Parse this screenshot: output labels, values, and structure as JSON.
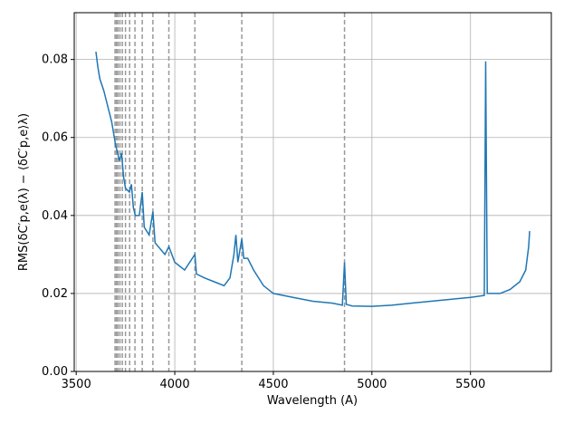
{
  "chart_data": {
    "type": "line",
    "xlabel": "Wavelength (A)",
    "ylabel": "RMS(δC′p,e(λ) − ⟨δC′p,e⟩λ)",
    "xlim": [
      3490,
      5910
    ],
    "ylim": [
      0,
      0.092
    ],
    "xticks": [
      3500,
      4000,
      4500,
      5000,
      5500
    ],
    "yticks": [
      {
        "value": 0,
        "label": "0.00"
      },
      {
        "value": 0.02,
        "label": "0.02"
      },
      {
        "value": 0.04,
        "label": "0.04"
      },
      {
        "value": 0.06,
        "label": "0.06"
      },
      {
        "value": 0.08,
        "label": "0.08"
      }
    ],
    "grid": true,
    "vlines": [
      3697,
      3704,
      3712,
      3722,
      3734,
      3750,
      3771,
      3798,
      3835,
      3889,
      3970,
      4102,
      4340,
      4861
    ],
    "vline_color": "#999999",
    "series": [
      {
        "color": "#1f77b4",
        "x": [
          3600,
          3610,
          3620,
          3640,
          3660,
          3680,
          3700,
          3720,
          3730,
          3740,
          3750,
          3770,
          3780,
          3790,
          3800,
          3820,
          3835,
          3845,
          3870,
          3889,
          3900,
          3950,
          3970,
          4000,
          4050,
          4102,
          4110,
          4150,
          4200,
          4250,
          4280,
          4300,
          4310,
          4320,
          4340,
          4350,
          4370,
          4400,
          4450,
          4500,
          4600,
          4700,
          4800,
          4850,
          4861,
          4870,
          4900,
          5000,
          5100,
          5200,
          5300,
          5400,
          5500,
          5570,
          5577,
          5585,
          5650,
          5700,
          5750,
          5780,
          5795,
          5800
        ],
        "values": [
          0.082,
          0.078,
          0.075,
          0.072,
          0.068,
          0.064,
          0.058,
          0.054,
          0.056,
          0.05,
          0.047,
          0.046,
          0.048,
          0.042,
          0.04,
          0.04,
          0.046,
          0.037,
          0.035,
          0.041,
          0.033,
          0.03,
          0.032,
          0.028,
          0.026,
          0.03,
          0.025,
          0.024,
          0.023,
          0.022,
          0.024,
          0.03,
          0.035,
          0.028,
          0.034,
          0.029,
          0.029,
          0.026,
          0.022,
          0.02,
          0.019,
          0.018,
          0.0175,
          0.017,
          0.028,
          0.0172,
          0.0168,
          0.0167,
          0.017,
          0.0175,
          0.018,
          0.0185,
          0.019,
          0.0195,
          0.0795,
          0.02,
          0.02,
          0.021,
          0.023,
          0.026,
          0.032,
          0.036
        ]
      }
    ]
  }
}
